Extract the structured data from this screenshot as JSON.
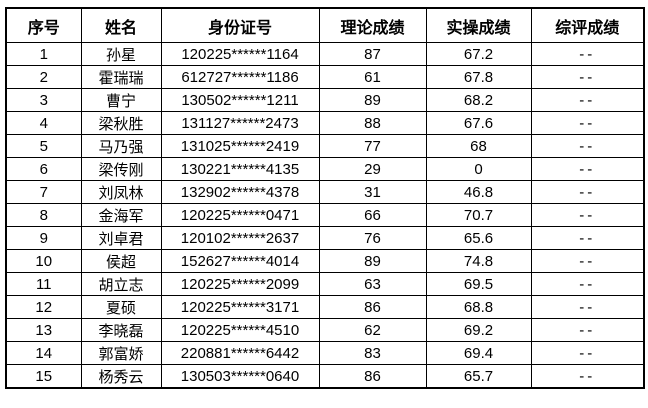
{
  "table": {
    "headers": [
      "序号",
      "姓名",
      "身份证号",
      "理论成绩",
      "实操成绩",
      "综评成绩"
    ],
    "cell_names": [
      "cell-index",
      "cell-name",
      "cell-id-number",
      "cell-theory-score",
      "cell-practical-score",
      "cell-composite-score"
    ],
    "rows": [
      [
        "1",
        "孙星",
        "120225******1164",
        "87",
        "67.2",
        "--"
      ],
      [
        "2",
        "霍瑞瑞",
        "612727******1186",
        "61",
        "67.8",
        "--"
      ],
      [
        "3",
        "曹宁",
        "130502******1211",
        "89",
        "68.2",
        "--"
      ],
      [
        "4",
        "梁秋胜",
        "131127******2473",
        "88",
        "67.6",
        "--"
      ],
      [
        "5",
        "马乃强",
        "131025******2419",
        "77",
        "68",
        "--"
      ],
      [
        "6",
        "梁传刚",
        "130221******4135",
        "29",
        "0",
        "--"
      ],
      [
        "7",
        "刘凤林",
        "132902******4378",
        "31",
        "46.8",
        "--"
      ],
      [
        "8",
        "金海军",
        "120225******0471",
        "66",
        "70.7",
        "--"
      ],
      [
        "9",
        "刘卓君",
        "120102******2637",
        "76",
        "65.6",
        "--"
      ],
      [
        "10",
        "侯超",
        "152627******4014",
        "89",
        "74.8",
        "--"
      ],
      [
        "11",
        "胡立志",
        "120225******2099",
        "63",
        "69.5",
        "--"
      ],
      [
        "12",
        "夏硕",
        "120225******3171",
        "86",
        "68.8",
        "--"
      ],
      [
        "13",
        "李晓磊",
        "120225******4510",
        "62",
        "69.2",
        "--"
      ],
      [
        "14",
        "郭富娇",
        "220881******6442",
        "83",
        "69.4",
        "--"
      ],
      [
        "15",
        "杨秀云",
        "130503******0640",
        "86",
        "65.7",
        "--"
      ]
    ],
    "colors": {
      "border": "#000000",
      "text": "#000000",
      "background": "#ffffff"
    }
  }
}
